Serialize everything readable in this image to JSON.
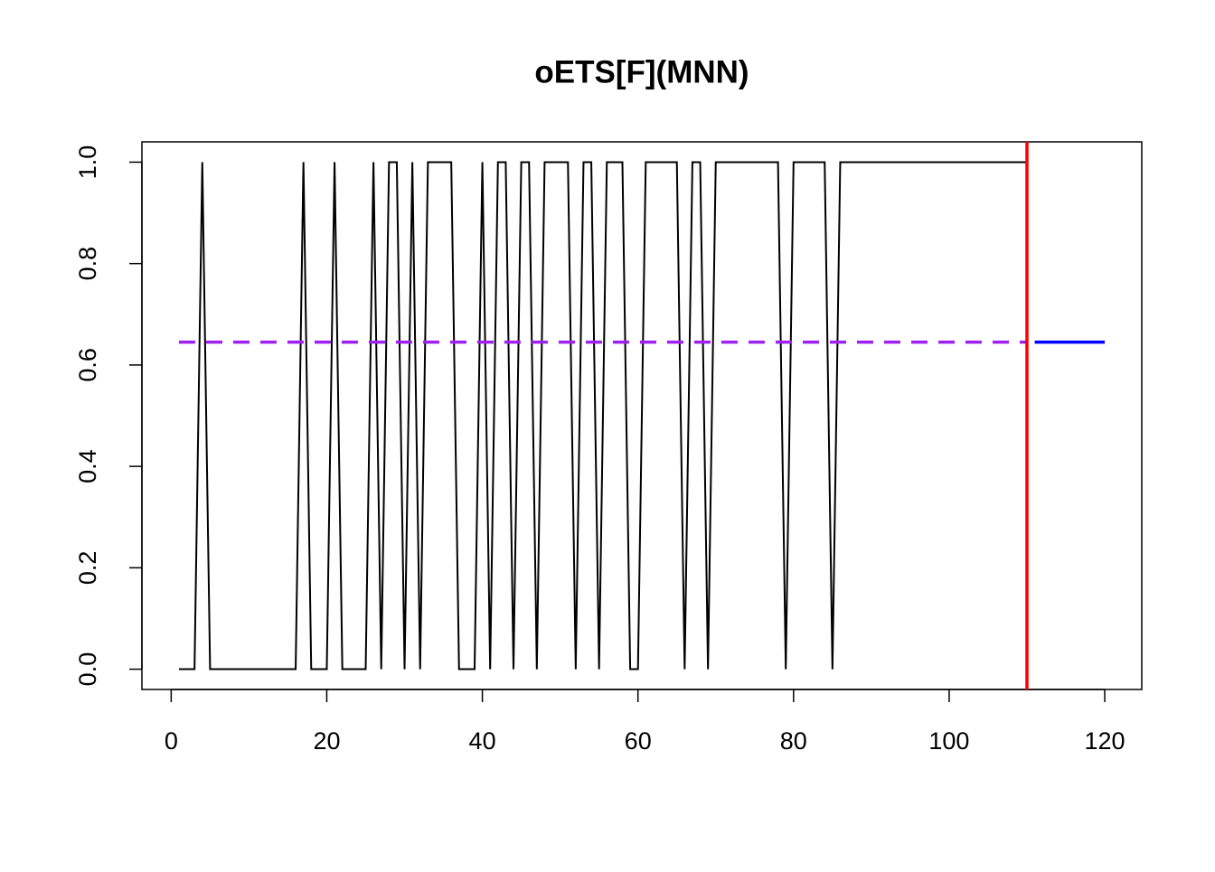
{
  "chart_data": {
    "type": "line",
    "title": "oETS[F](MNN)",
    "xlim": [
      -3.76,
      124.76
    ],
    "ylim": [
      -0.04,
      1.04
    ],
    "xticks": [
      0,
      20,
      40,
      60,
      80,
      100,
      120
    ],
    "yticks": [
      {
        "value": 0,
        "label": "0.0"
      },
      0.2,
      0.4,
      0.6,
      0.8,
      {
        "value": 1,
        "label": "1.0"
      }
    ],
    "vline": {
      "x": 110,
      "color": "#ff0000"
    },
    "series": [
      {
        "color": "#000000",
        "dash": false,
        "x": [
          1,
          2,
          3,
          4,
          5,
          6,
          7,
          8,
          9,
          10,
          11,
          12,
          13,
          14,
          15,
          16,
          17,
          18,
          19,
          20,
          21,
          22,
          23,
          24,
          25,
          26,
          27,
          28,
          29,
          30,
          31,
          32,
          33,
          34,
          35,
          36,
          37,
          38,
          39,
          40,
          41,
          42,
          43,
          44,
          45,
          46,
          47,
          48,
          49,
          50,
          51,
          52,
          53,
          54,
          55,
          56,
          57,
          58,
          59,
          60,
          61,
          62,
          63,
          64,
          65,
          66,
          67,
          68,
          69,
          70,
          71,
          72,
          73,
          74,
          75,
          76,
          77,
          78,
          79,
          80,
          81,
          82,
          83,
          84,
          85,
          86,
          87,
          88,
          89,
          90,
          91,
          92,
          93,
          94,
          95,
          96,
          97,
          98,
          99,
          100,
          101,
          102,
          103,
          104,
          105,
          106,
          107,
          108,
          109,
          110
        ],
        "values": [
          0,
          0,
          0,
          1,
          0,
          0,
          0,
          0,
          0,
          0,
          0,
          0,
          0,
          0,
          0,
          0,
          1,
          0,
          0,
          0,
          1,
          0,
          0,
          0,
          0,
          1,
          0,
          1,
          1,
          0,
          1,
          0,
          1,
          1,
          1,
          1,
          0,
          0,
          0,
          1,
          0,
          1,
          1,
          0,
          1,
          1,
          0,
          1,
          1,
          1,
          1,
          0,
          1,
          1,
          0,
          1,
          1,
          1,
          0,
          0,
          1,
          1,
          1,
          1,
          1,
          0,
          1,
          1,
          0,
          1,
          1,
          1,
          1,
          1,
          1,
          1,
          1,
          1,
          0,
          1,
          1,
          1,
          1,
          1,
          0,
          1,
          1,
          1,
          1,
          1,
          1,
          1,
          1,
          1,
          1,
          1,
          1,
          1,
          1,
          1,
          1,
          1,
          1,
          1,
          1,
          1,
          1,
          1,
          1,
          1
        ]
      },
      {
        "color": "#a020f0",
        "dash": true,
        "x": [
          1,
          110
        ],
        "values": [
          0.645,
          0.645
        ]
      },
      {
        "color": "#0000ff",
        "dash": false,
        "x": [
          111,
          120
        ],
        "values": [
          0.645,
          0.645
        ]
      }
    ]
  }
}
